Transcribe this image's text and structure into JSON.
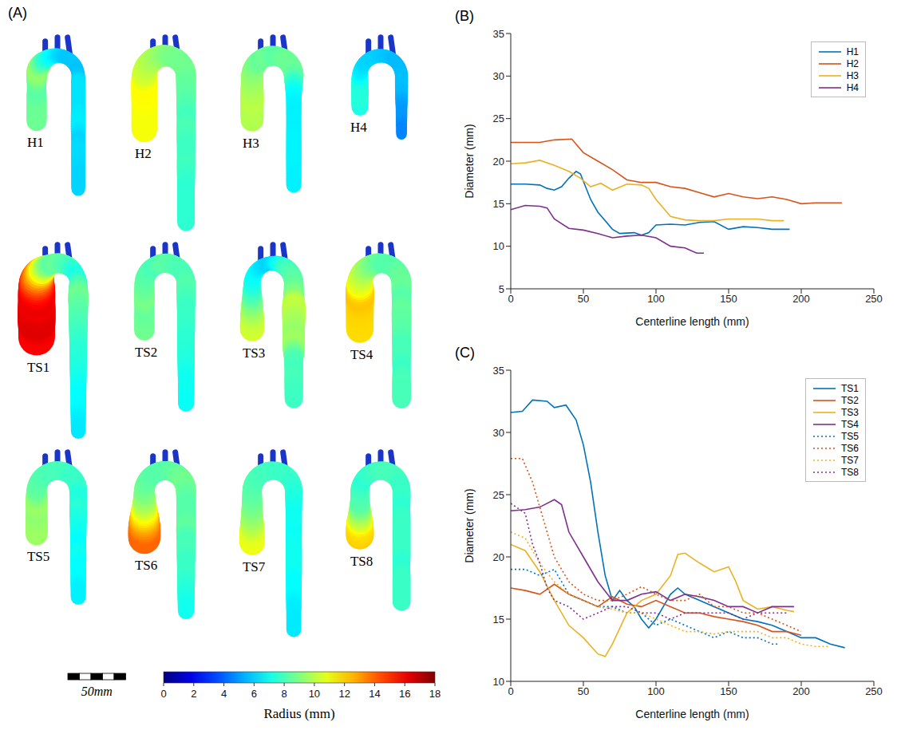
{
  "figure_a": {
    "title": "(A)",
    "models": [
      "H1",
      "H2",
      "H3",
      "H4",
      "TS1",
      "TS2",
      "TS3",
      "TS4",
      "TS5",
      "TS6",
      "TS7",
      "TS8"
    ],
    "colorbar": {
      "label": "Radius (mm)",
      "range": [
        0,
        18
      ],
      "ticks": [
        0,
        2,
        4,
        6,
        8,
        10,
        12,
        14,
        16,
        18
      ]
    },
    "scale_bar": {
      "label": "50mm",
      "length_mm": 50
    }
  },
  "chart_data": [
    {
      "type": "line",
      "title": "(B)",
      "xlabel": "Centerline length (mm)",
      "ylabel": "Diameter (mm)",
      "xlim": [
        0,
        250
      ],
      "xticks": [
        0,
        50,
        100,
        150,
        200,
        250
      ],
      "ylim": [
        5,
        35
      ],
      "yticks": [
        5,
        10,
        15,
        20,
        25,
        30,
        35
      ],
      "grid": false,
      "legend": "upper right",
      "series": [
        {
          "name": "H1",
          "color": "#0072bd",
          "line_style": "solid",
          "x": [
            0,
            10,
            20,
            25,
            30,
            35,
            40,
            45,
            48,
            55,
            60,
            70,
            75,
            85,
            90,
            95,
            100,
            110,
            120,
            130,
            140,
            150,
            160,
            170,
            180,
            192
          ],
          "values": [
            17.3,
            17.3,
            17.2,
            16.8,
            16.6,
            17,
            18,
            18.8,
            18.5,
            15.5,
            14,
            12,
            11.5,
            11.6,
            11.3,
            11.6,
            12.5,
            12.6,
            12.5,
            12.8,
            12.9,
            12,
            12.3,
            12.2,
            12,
            12
          ]
        },
        {
          "name": "H2",
          "color": "#d95319",
          "line_style": "solid",
          "x": [
            0,
            20,
            30,
            42,
            50,
            60,
            70,
            80,
            90,
            100,
            110,
            120,
            130,
            140,
            150,
            160,
            170,
            180,
            190,
            200,
            210,
            228
          ],
          "values": [
            22.2,
            22.2,
            22.5,
            22.6,
            21,
            20,
            19,
            17.8,
            17.5,
            17.5,
            17,
            16.8,
            16.3,
            15.8,
            16.2,
            15.8,
            15.6,
            15.8,
            15.5,
            15,
            15.1,
            15.1
          ]
        },
        {
          "name": "H3",
          "color": "#edb120",
          "line_style": "solid",
          "x": [
            0,
            10,
            20,
            30,
            40,
            48,
            55,
            62,
            70,
            80,
            90,
            95,
            100,
            110,
            120,
            130,
            140,
            150,
            160,
            170,
            180,
            188
          ],
          "values": [
            19.7,
            19.8,
            20.1,
            19.5,
            18.8,
            18,
            17,
            17.4,
            16.6,
            17.3,
            17.2,
            16.8,
            15.5,
            13.5,
            13.1,
            13,
            13,
            13.2,
            13.2,
            13.2,
            13,
            13
          ]
        },
        {
          "name": "H4",
          "color": "#7e2f8e",
          "line_style": "solid",
          "x": [
            0,
            10,
            20,
            25,
            30,
            40,
            50,
            60,
            70,
            80,
            90,
            100,
            110,
            120,
            128,
            133
          ],
          "values": [
            14.3,
            14.8,
            14.7,
            14.5,
            13.2,
            12.1,
            11.9,
            11.5,
            11,
            11.2,
            11.3,
            11,
            10,
            9.8,
            9.2,
            9.2
          ]
        }
      ]
    },
    {
      "type": "line",
      "title": "(C)",
      "xlabel": "Centerline length (mm)",
      "ylabel": "Diameter (mm)",
      "xlim": [
        0,
        250
      ],
      "xticks": [
        0,
        50,
        100,
        150,
        200,
        250
      ],
      "ylim": [
        10,
        35
      ],
      "yticks": [
        10,
        15,
        20,
        25,
        30,
        35
      ],
      "grid": false,
      "legend": "upper right",
      "series": [
        {
          "name": "TS1",
          "color": "#0072bd",
          "line_style": "solid",
          "x": [
            0,
            8,
            15,
            25,
            30,
            38,
            45,
            50,
            55,
            60,
            65,
            70,
            75,
            80,
            85,
            90,
            95,
            100,
            105,
            110,
            115,
            120,
            130,
            140,
            150,
            160,
            170,
            180,
            190,
            200,
            210,
            220,
            230
          ],
          "values": [
            31.6,
            31.7,
            32.6,
            32.5,
            32,
            32.2,
            31,
            29,
            26,
            22,
            18.5,
            16.5,
            17.3,
            16.5,
            16,
            15,
            14.3,
            15,
            16,
            17,
            17.5,
            17,
            16.5,
            16,
            15.5,
            15,
            14.8,
            14.5,
            14,
            13.5,
            13.5,
            13,
            12.7
          ]
        },
        {
          "name": "TS2",
          "color": "#d95319",
          "line_style": "solid",
          "x": [
            0,
            10,
            20,
            30,
            40,
            50,
            60,
            70,
            80,
            90,
            100,
            110,
            120,
            130,
            140,
            150,
            160,
            170,
            180,
            190,
            200
          ],
          "values": [
            17.5,
            17.3,
            17,
            17.8,
            17,
            16.5,
            16,
            16.8,
            16.2,
            16,
            16.5,
            16,
            15.5,
            15.5,
            15.2,
            15,
            14.8,
            14.5,
            14,
            14,
            13.7
          ]
        },
        {
          "name": "TS3",
          "color": "#edb120",
          "line_style": "solid",
          "x": [
            0,
            10,
            20,
            30,
            40,
            50,
            60,
            65,
            70,
            80,
            90,
            100,
            110,
            115,
            120,
            130,
            140,
            150,
            155,
            160,
            170,
            180,
            190,
            195
          ],
          "values": [
            21,
            20.5,
            18.8,
            16.5,
            14.5,
            13.5,
            12.2,
            12,
            13,
            15.5,
            16.5,
            17,
            18.5,
            20.2,
            20.3,
            19.5,
            18.8,
            19.2,
            18,
            16.5,
            15.8,
            16,
            15.7,
            15.6
          ]
        },
        {
          "name": "TS4",
          "color": "#7e2f8e",
          "line_style": "solid",
          "x": [
            0,
            10,
            20,
            30,
            35,
            40,
            50,
            60,
            70,
            80,
            90,
            100,
            110,
            120,
            130,
            140,
            150,
            160,
            170,
            180,
            190,
            195
          ],
          "values": [
            23.7,
            23.8,
            24,
            24.6,
            24.2,
            22,
            20,
            18,
            16.5,
            16.5,
            17,
            17.2,
            16.5,
            17,
            16.8,
            16.5,
            16,
            16,
            15.5,
            16,
            16,
            16
          ]
        },
        {
          "name": "TS5",
          "color": "#0072bd",
          "line_style": "dotted",
          "x": [
            0,
            10,
            20,
            30,
            40,
            50,
            60,
            70,
            80,
            90,
            100,
            110,
            120,
            130,
            140,
            150,
            160,
            170,
            180,
            185
          ],
          "values": [
            19,
            19,
            18.5,
            19,
            17,
            16.5,
            16,
            16,
            15.5,
            15.5,
            14.5,
            15,
            14.5,
            14,
            13.5,
            14,
            13.5,
            13.5,
            13,
            13
          ]
        },
        {
          "name": "TS6",
          "color": "#d95319",
          "line_style": "dotted",
          "x": [
            0,
            8,
            15,
            20,
            25,
            30,
            40,
            50,
            60,
            70,
            80,
            90,
            100,
            110,
            120,
            130,
            140,
            150,
            160,
            170,
            180,
            190,
            200
          ],
          "values": [
            27.9,
            27.9,
            26,
            24,
            22,
            20,
            18,
            17,
            16.5,
            16.5,
            17,
            17.6,
            17,
            16.5,
            16.5,
            17,
            16,
            16,
            15.5,
            15.5,
            15,
            14.5,
            14
          ]
        },
        {
          "name": "TS7",
          "color": "#edb120",
          "line_style": "dotted",
          "x": [
            0,
            10,
            20,
            30,
            40,
            50,
            60,
            70,
            80,
            90,
            100,
            110,
            120,
            130,
            140,
            150,
            160,
            170,
            180,
            190,
            200,
            210,
            220
          ],
          "values": [
            22,
            21.5,
            19.5,
            18,
            17,
            16.5,
            16,
            15.8,
            15.5,
            15.5,
            15,
            14.5,
            14,
            14,
            13.8,
            14,
            14,
            14,
            13.5,
            13.5,
            13,
            12.8,
            12.8
          ]
        },
        {
          "name": "TS8",
          "color": "#7e2f8e",
          "line_style": "dotted",
          "x": [
            0,
            10,
            15,
            20,
            25,
            30,
            40,
            50,
            60,
            70,
            80,
            90,
            100,
            110,
            120,
            130,
            140,
            150,
            160,
            170,
            180,
            190
          ],
          "values": [
            24.3,
            23.5,
            21,
            19.5,
            17.5,
            16.5,
            16,
            15,
            15.5,
            16,
            16,
            15.5,
            15.5,
            15,
            15.5,
            15.5,
            15.5,
            15.5,
            15,
            15.5,
            15.5,
            15.5
          ]
        }
      ]
    }
  ]
}
